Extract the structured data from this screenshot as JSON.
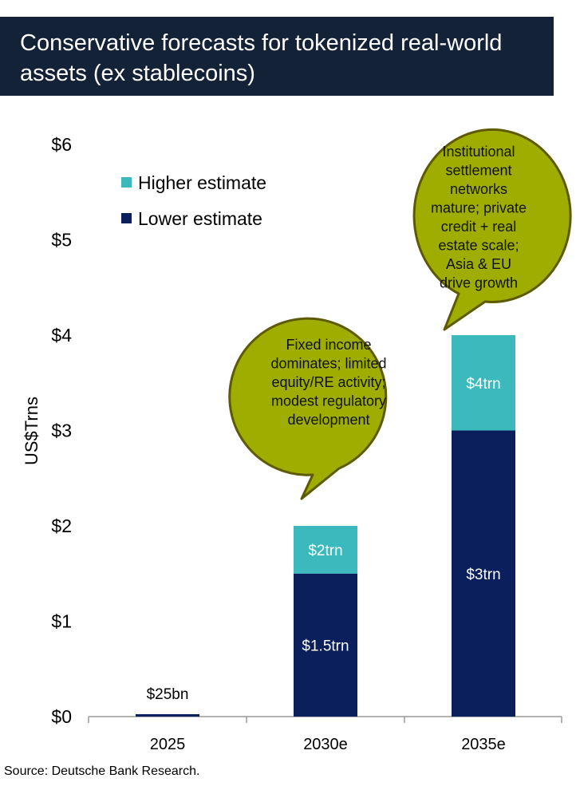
{
  "header": {
    "title": "Conservative forecasts for tokenized real-world assets (ex stablecoins)"
  },
  "footer": {
    "source": "Source: Deutsche Bank Research."
  },
  "colors": {
    "title_bg": "#142238",
    "lower": "#0b1f5c",
    "higher": "#3cb9bc",
    "bubble_fill": "#9ead00",
    "bubble_stroke": "#5e5a00"
  },
  "chart_data": {
    "type": "bar",
    "stacked": true,
    "ylabel": "US$Trns",
    "ylim": [
      0,
      6
    ],
    "yticks": [
      0,
      1,
      2,
      3,
      4,
      5,
      6
    ],
    "ytick_labels": [
      "$0",
      "$1",
      "$2",
      "$3",
      "$4",
      "$5",
      "$6"
    ],
    "categories": [
      "2025",
      "2030e",
      "2035e"
    ],
    "series": [
      {
        "name": "Lower estimate",
        "values": [
          0.025,
          1.5,
          3
        ],
        "labels": [
          "$25bn",
          "$1.5trn",
          "$3trn"
        ]
      },
      {
        "name": "Higher estimate",
        "values": [
          0,
          0.5,
          1
        ],
        "labels": [
          "",
          "$2trn",
          "$4trn"
        ]
      }
    ],
    "legend": {
      "placement": "top-left",
      "entries": [
        "Higher estimate",
        "Lower estimate"
      ]
    },
    "annotations": [
      {
        "category": "2030e",
        "lines": [
          "Fixed income",
          "dominates; limited",
          "equity/RE activity;",
          "modest regulatory",
          "development"
        ]
      },
      {
        "category": "2035e",
        "lines": [
          "Institutional",
          "settlement",
          "networks",
          "mature; private",
          "credit + real",
          "estate scale;",
          "Asia & EU",
          "drive growth"
        ]
      }
    ],
    "grid": false
  }
}
